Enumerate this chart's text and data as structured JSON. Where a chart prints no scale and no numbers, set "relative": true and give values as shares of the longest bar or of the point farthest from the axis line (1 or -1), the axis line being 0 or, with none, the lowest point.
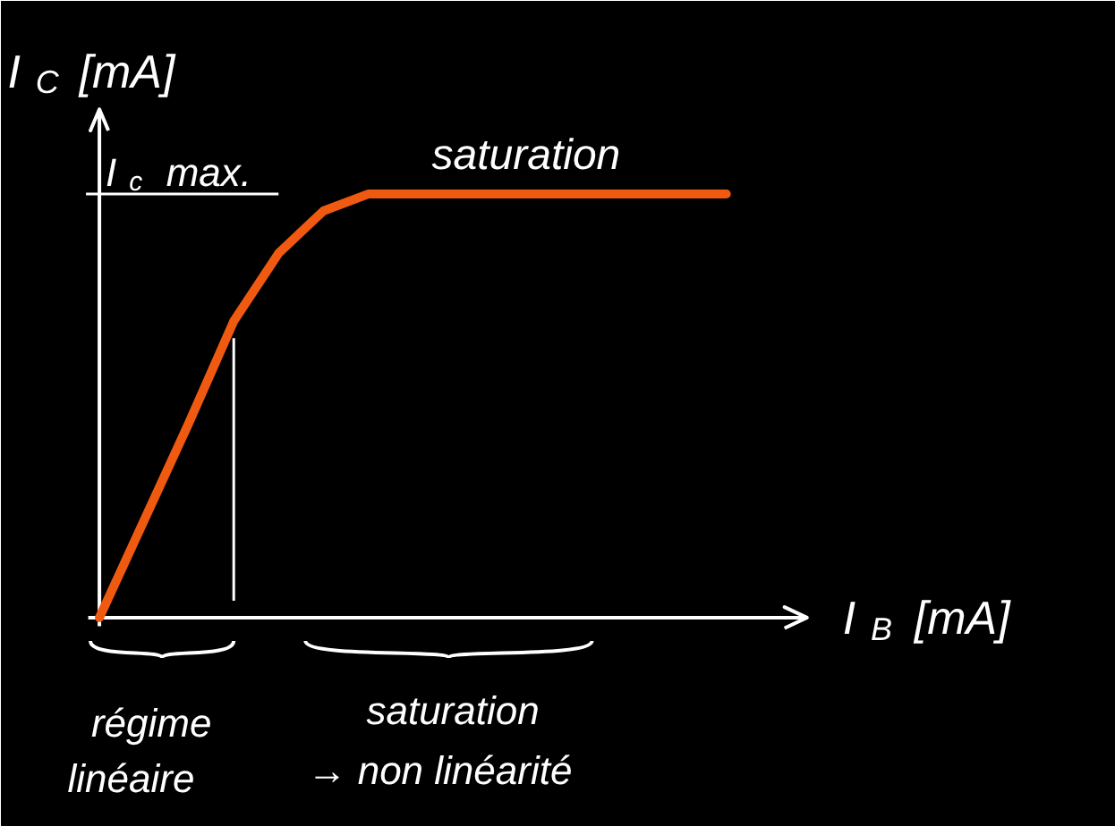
{
  "chart_data": {
    "type": "line",
    "relative": true,
    "xlabel": "I$_{B}$ [mA]",
    "ylabel": "I$_{C}$ [mA]",
    "categories": [
      null,
      null,
      null,
      null,
      null,
      null,
      null,
      null,
      null,
      null,
      null,
      null,
      null,
      null,
      null
    ],
    "series": [
      {
        "color": "#f05a10",
        "values": [
          0,
          0.23,
          0.46,
          0.7,
          0.86,
          0.96,
          1.0,
          1.0,
          1.0,
          1.0,
          1.0,
          1.0,
          1.0,
          1.0,
          1.0
        ]
      }
    ],
    "ref_lines": [
      {
        "axis": "y",
        "value": 1.0,
        "label": "I$_{c}$ max.",
        "color": "#ffffff"
      }
    ],
    "annotations": [
      "saturation",
      "régime",
      "linéaire",
      "saturation",
      "→ non linéarité"
    ],
    "grid": false,
    "marker": "none",
    "line_style": "solid"
  }
}
